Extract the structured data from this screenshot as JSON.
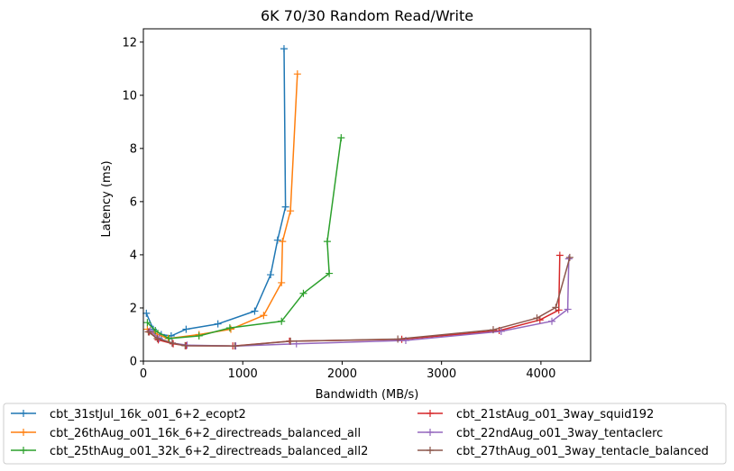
{
  "chart_data": {
    "type": "line",
    "title": "6K 70/30  Random Read/Write",
    "xlabel": "Bandwidth (MB/s)",
    "ylabel": "Latency (ms)",
    "xlim": [
      0,
      4500
    ],
    "ylim": [
      0,
      12.5
    ],
    "xticks": [
      "0",
      "1000",
      "2000",
      "3000",
      "4000"
    ],
    "yticks": [
      "0",
      "2",
      "4",
      "6",
      "8",
      "10",
      "12"
    ],
    "grid": false,
    "legend_position": "below",
    "series": [
      {
        "name": "cbt_31stJul_16k_o01_6+2_ecopt2",
        "color": "#1f77b4",
        "points": [
          [
            30,
            1.8
          ],
          [
            100,
            1.2
          ],
          [
            180,
            1.0
          ],
          [
            280,
            0.95
          ],
          [
            430,
            1.2
          ],
          [
            750,
            1.4
          ],
          [
            1120,
            1.88
          ],
          [
            1280,
            3.25
          ],
          [
            1350,
            4.55
          ],
          [
            1430,
            5.8
          ],
          [
            1415,
            11.75
          ]
        ]
      },
      {
        "name": "cbt_26thAug_o01_16k_6+2_directreads_balanced_all",
        "color": "#ff7f0e",
        "points": [
          [
            40,
            1.2
          ],
          [
            110,
            1.05
          ],
          [
            250,
            0.85
          ],
          [
            560,
            1.0
          ],
          [
            880,
            1.2
          ],
          [
            1210,
            1.72
          ],
          [
            1390,
            2.95
          ],
          [
            1400,
            4.5
          ],
          [
            1480,
            5.65
          ],
          [
            1550,
            10.8
          ]
        ]
      },
      {
        "name": "cbt_25thAug_o01_32k_6+2_directreads_balanced_all2",
        "color": "#2ca02c",
        "points": [
          [
            40,
            1.45
          ],
          [
            120,
            1.15
          ],
          [
            260,
            0.85
          ],
          [
            560,
            0.95
          ],
          [
            870,
            1.25
          ],
          [
            1390,
            1.5
          ],
          [
            1610,
            2.55
          ],
          [
            1870,
            3.3
          ],
          [
            1850,
            4.5
          ],
          [
            1990,
            8.4
          ]
        ]
      },
      {
        "name": "cbt_21stAug_o01_3way_squid192",
        "color": "#d62728",
        "points": [
          [
            60,
            1.1
          ],
          [
            150,
            0.8
          ],
          [
            300,
            0.65
          ],
          [
            430,
            0.58
          ],
          [
            900,
            0.57
          ],
          [
            1470,
            0.75
          ],
          [
            2600,
            0.82
          ],
          [
            3580,
            1.15
          ],
          [
            3990,
            1.55
          ],
          [
            4180,
            1.92
          ],
          [
            4190,
            3.98
          ]
        ]
      },
      {
        "name": "cbt_22ndAug_o01_3way_tentaclerc",
        "color": "#9467bd",
        "points": [
          [
            70,
            1.15
          ],
          [
            160,
            0.85
          ],
          [
            290,
            0.68
          ],
          [
            440,
            0.6
          ],
          [
            930,
            0.57
          ],
          [
            1540,
            0.65
          ],
          [
            2640,
            0.78
          ],
          [
            3600,
            1.12
          ],
          [
            4110,
            1.5
          ],
          [
            4270,
            1.95
          ],
          [
            4280,
            3.85
          ]
        ]
      },
      {
        "name": "cbt_27thAug_o01_3way_tentacle_balanced",
        "color": "#8c564b",
        "points": [
          [
            50,
            1.1
          ],
          [
            140,
            0.85
          ],
          [
            290,
            0.68
          ],
          [
            420,
            0.58
          ],
          [
            920,
            0.57
          ],
          [
            1480,
            0.75
          ],
          [
            2560,
            0.83
          ],
          [
            3520,
            1.18
          ],
          [
            3960,
            1.62
          ],
          [
            4150,
            2.02
          ],
          [
            4290,
            3.9
          ]
        ]
      }
    ]
  }
}
